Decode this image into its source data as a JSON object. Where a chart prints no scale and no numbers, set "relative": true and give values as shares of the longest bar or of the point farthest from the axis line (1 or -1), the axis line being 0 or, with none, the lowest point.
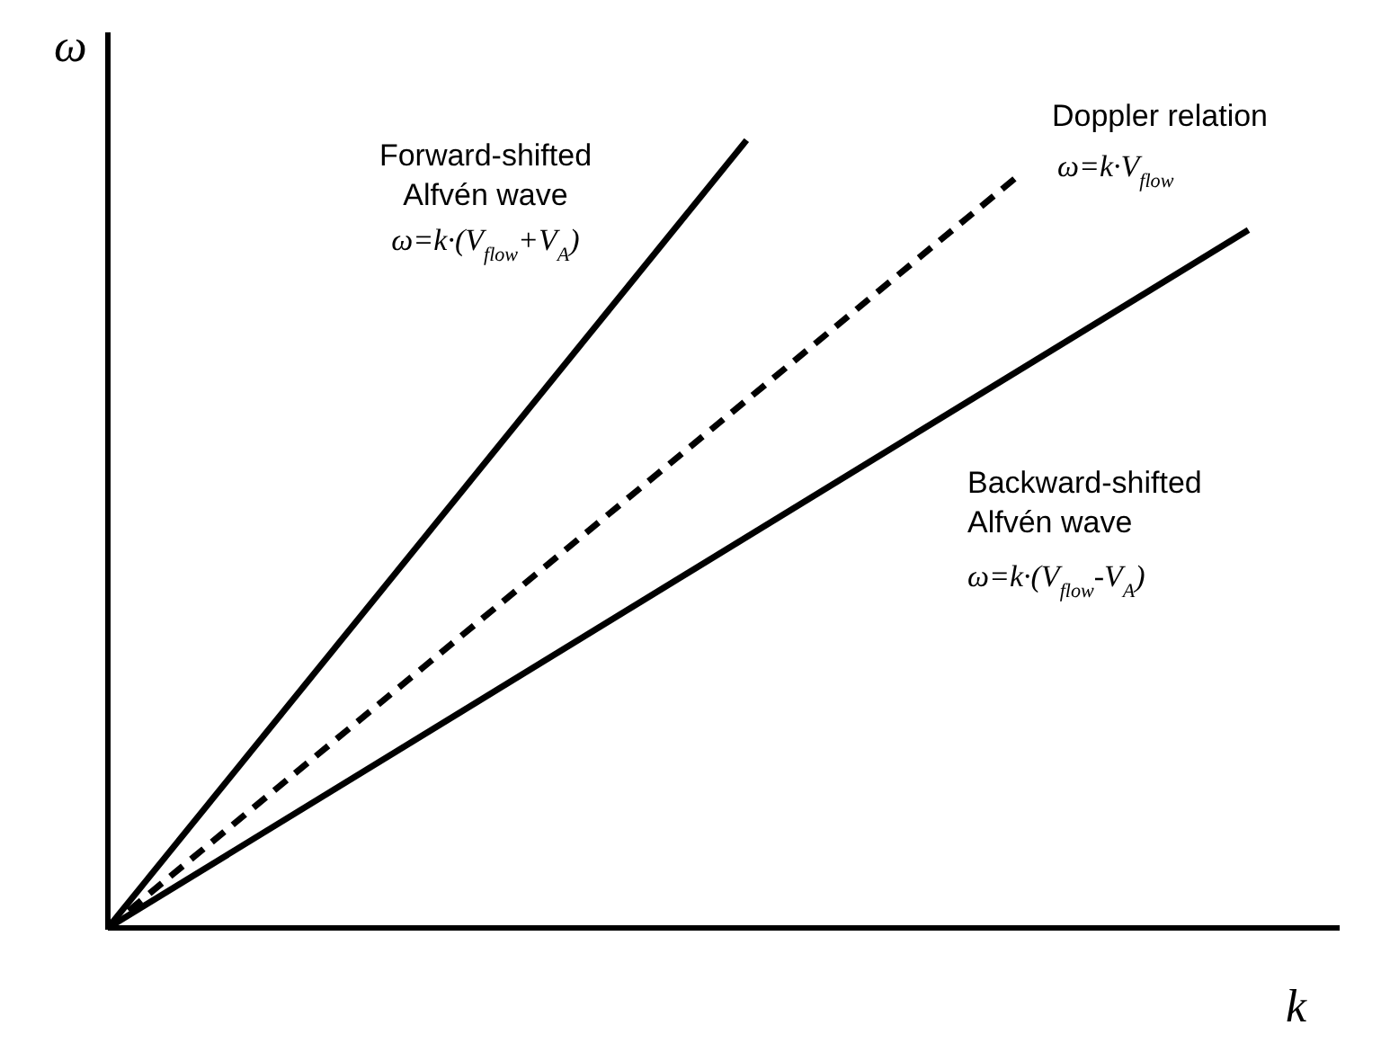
{
  "chart_data": {
    "type": "line",
    "relative": true,
    "xlabel": "k",
    "ylabel": "ω",
    "categories": [
      null,
      null,
      null,
      null,
      null,
      null,
      null,
      null,
      null,
      null,
      null,
      null,
      null,
      null,
      null,
      null,
      null,
      null,
      null,
      null,
      null,
      null,
      null,
      null,
      null,
      null,
      null,
      null
    ],
    "series": [
      {
        "name": "Forward-shifted\nAlfvén wave",
        "color": "#000000",
        "line_style": "solid",
        "values": [
          0,
          null,
          null,
          null,
          null,
          null,
          null,
          null,
          null,
          null,
          null,
          null,
          null,
          null,
          1,
          null,
          null,
          null,
          null,
          null,
          null,
          null,
          null,
          null,
          null,
          null,
          null,
          null
        ]
      },
      {
        "name": "Doppler relation",
        "color": "#000000",
        "line_style": "dashed",
        "values": [
          0,
          null,
          null,
          null,
          null,
          null,
          null,
          null,
          null,
          null,
          null,
          null,
          null,
          null,
          null,
          null,
          null,
          null,
          null,
          null,
          0.957,
          null,
          null,
          null,
          null,
          null,
          null,
          null
        ]
      },
      {
        "name": "Backward-shifted\nAlfvén wave",
        "color": "#000000",
        "line_style": "solid",
        "values": [
          0,
          null,
          null,
          null,
          null,
          null,
          null,
          null,
          null,
          null,
          null,
          null,
          null,
          null,
          null,
          null,
          null,
          null,
          null,
          null,
          null,
          null,
          null,
          null,
          null,
          0.886,
          null,
          null
        ]
      }
    ],
    "annotations": [
      "ω=k·(V$_{flow}$+V$_{A}$)",
      "ω=k·V$_{flow}$",
      "ω=k·(V$_{flow}$-V$_{A}$)"
    ],
    "marker": "none",
    "grid": false,
    "legend": false
  }
}
